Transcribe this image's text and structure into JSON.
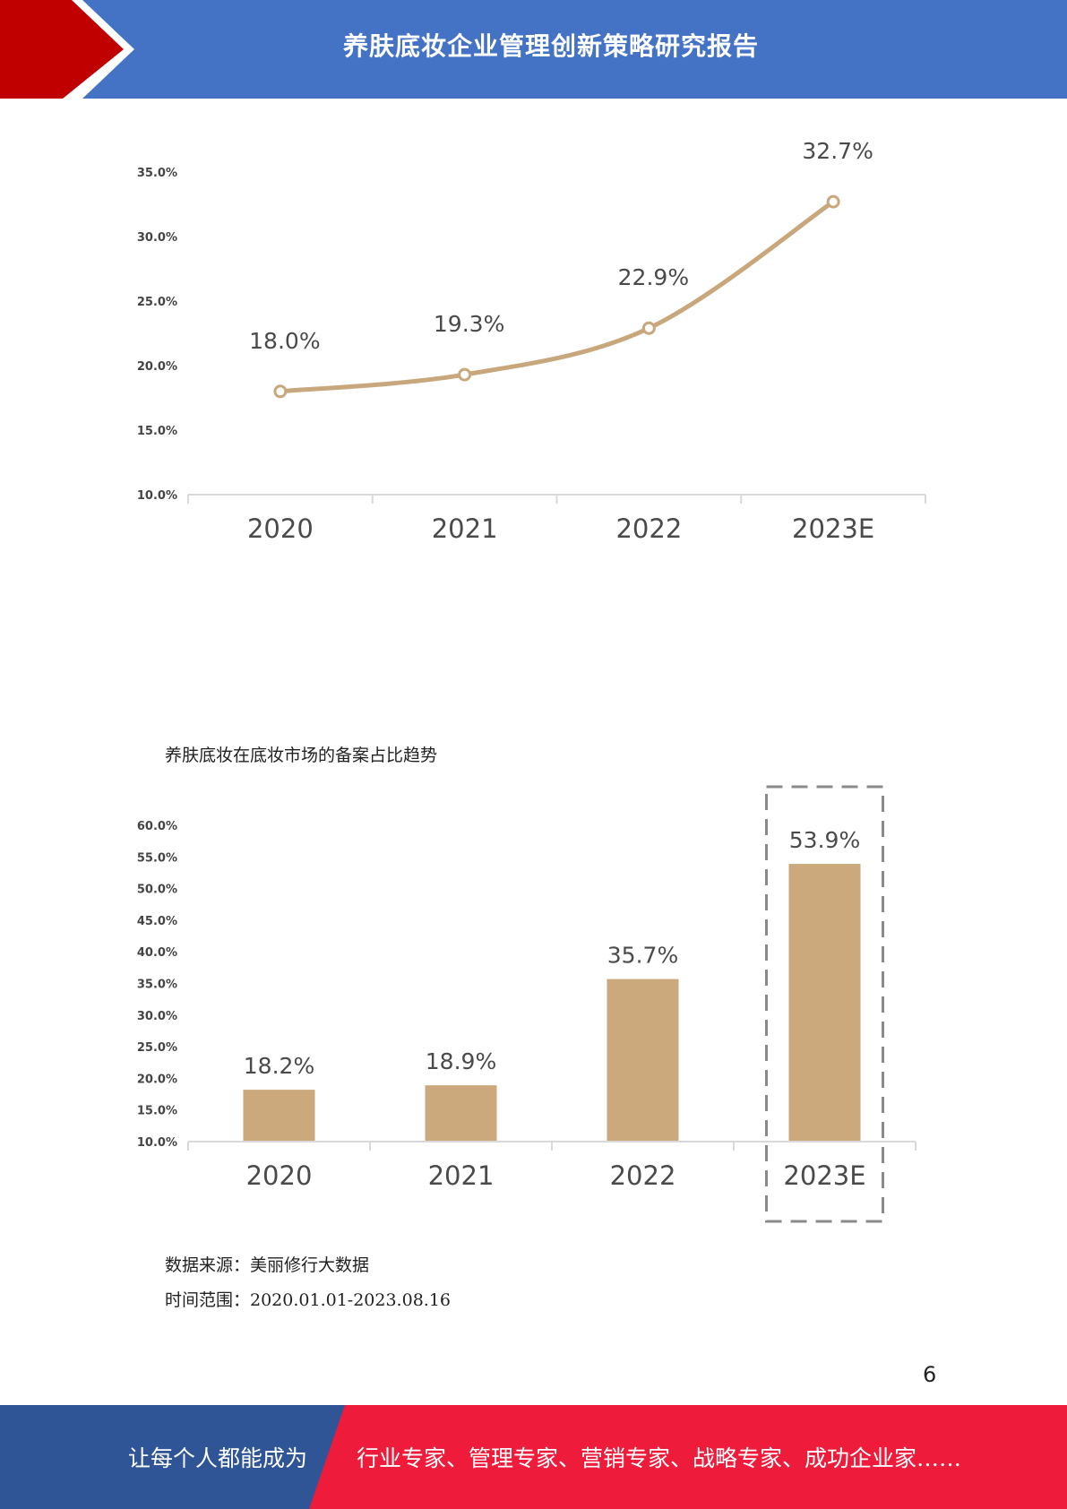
{
  "header": {
    "title": "养肤底妆企业管理创新策略研究报告",
    "colors": {
      "bar": "#4472C4",
      "arrow": "#C00000"
    }
  },
  "chart_data": [
    {
      "type": "line",
      "title": "",
      "categories": [
        "2020",
        "2021",
        "2022",
        "2023E"
      ],
      "values": [
        18.0,
        19.3,
        22.9,
        32.7
      ],
      "value_labels": [
        "18.0%",
        "19.3%",
        "22.9%",
        "32.7%"
      ],
      "y_ticks": [
        "10.0%",
        "15.0%",
        "20.0%",
        "25.0%",
        "30.0%",
        "35.0%"
      ],
      "ylim": [
        10,
        35
      ],
      "grid": false,
      "color": "#C9A77C"
    },
    {
      "type": "bar",
      "title": "养肤底妆在底妆市场的备案占比趋势",
      "categories": [
        "2020",
        "2021",
        "2022",
        "2023E"
      ],
      "values": [
        18.2,
        18.9,
        35.7,
        53.9
      ],
      "value_labels": [
        "18.2%",
        "18.9%",
        "35.7%",
        "53.9%"
      ],
      "y_ticks": [
        "10.0%",
        "15.0%",
        "20.0%",
        "25.0%",
        "30.0%",
        "35.0%",
        "40.0%",
        "45.0%",
        "50.0%",
        "55.0%",
        "60.0%"
      ],
      "ylim": [
        10,
        60
      ],
      "grid": false,
      "highlight": "2023E",
      "color": "#CBA97C"
    }
  ],
  "source": {
    "data_source": "数据来源：美丽修行大数据",
    "time_range": "时间范围：2020.01.01-2023.08.16"
  },
  "page_number": "6",
  "footer": {
    "left_text": "让每个人都能成为",
    "right_text": "行业专家、管理专家、营销专家、战略专家、成功企业家……",
    "colors": {
      "left": "#2F5597",
      "right": "#EE1C3A"
    }
  }
}
